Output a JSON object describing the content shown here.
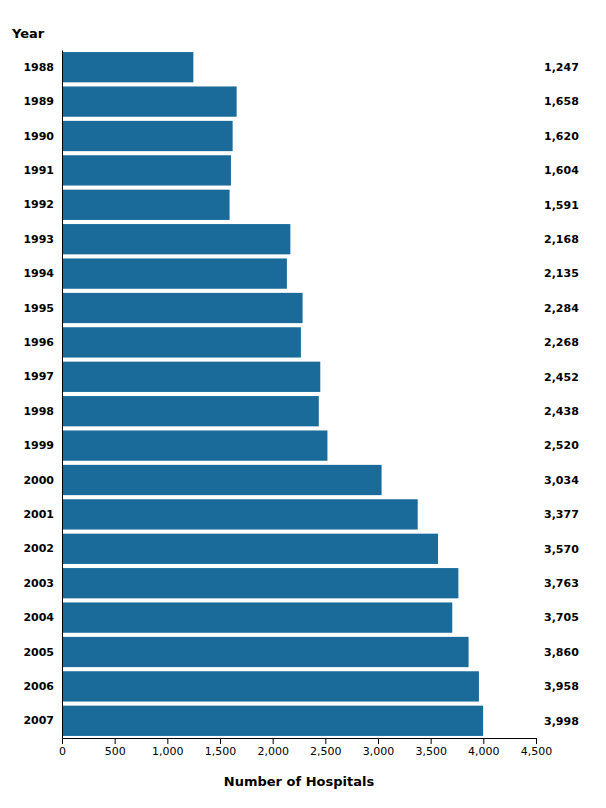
{
  "chart_data": {
    "type": "bar",
    "orientation": "horizontal",
    "categories": [
      "1988",
      "1989",
      "1990",
      "1991",
      "1992",
      "1993",
      "1994",
      "1995",
      "1996",
      "1997",
      "1998",
      "1999",
      "2000",
      "2001",
      "2002",
      "2003",
      "2004",
      "2005",
      "2006",
      "2007"
    ],
    "values": [
      1247,
      1658,
      1620,
      1604,
      1591,
      2168,
      2135,
      2284,
      2268,
      2452,
      2438,
      2520,
      3034,
      3377,
      3570,
      3763,
      3705,
      3860,
      3958,
      3998
    ],
    "value_labels": [
      "1,247",
      "1,658",
      "1,620",
      "1,604",
      "1,591",
      "2,168",
      "2,135",
      "2,284",
      "2,268",
      "2,452",
      "2,438",
      "2,520",
      "3,034",
      "3,377",
      "3,570",
      "3,763",
      "3,705",
      "3,860",
      "3,958",
      "3,998"
    ],
    "data_labels": true,
    "color": "#1a6b9a",
    "xlabel": "Number of Hospitals",
    "ylabel": "Year",
    "xlim": [
      0,
      4500
    ],
    "xticks": [
      0,
      500,
      {
        "value": 1000,
        "label": "1,000"
      },
      {
        "value": 1500,
        "label": "1,500"
      },
      {
        "value": 2000,
        "label": "2,000"
      },
      {
        "value": 2500,
        "label": "2,500"
      },
      {
        "value": 3000,
        "label": "3,000"
      },
      {
        "value": 3500,
        "label": "3,500"
      },
      {
        "value": 4000,
        "label": "4,000"
      },
      {
        "value": 4500,
        "label": "4,500"
      }
    ],
    "grid": false
  }
}
